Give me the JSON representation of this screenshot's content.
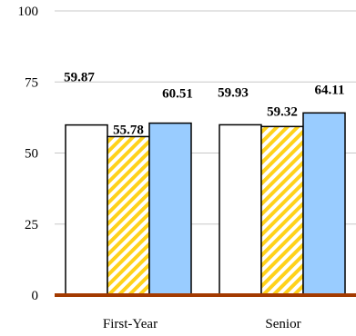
{
  "chart_data": {
    "type": "bar",
    "categories": [
      "First-Year",
      "Senior"
    ],
    "series": [
      {
        "values": [
          59.87,
          59.93
        ],
        "fill": "#ffffff",
        "pattern": "none"
      },
      {
        "values": [
          55.78,
          59.32
        ],
        "fill": "#ffffff",
        "pattern": "diagonal-stripes",
        "stripe_color": "#ffd21a"
      },
      {
        "values": [
          60.51,
          64.11
        ],
        "fill": "#99ccff",
        "pattern": "none"
      }
    ],
    "value_labels": [
      [
        "59.87",
        "55.78",
        "60.51"
      ],
      [
        "59.93",
        "59.32",
        "64.11"
      ]
    ],
    "ylim": [
      0,
      100
    ],
    "yticks": [
      0,
      25,
      50,
      75,
      100
    ],
    "ytick_labels": [
      "0",
      "25",
      "50",
      "75",
      "100"
    ],
    "grid": true,
    "legend": "none",
    "colors": {
      "gridline": "#c8c8c8",
      "baseline": "#a33a00",
      "bar_outline": "#000000"
    }
  }
}
